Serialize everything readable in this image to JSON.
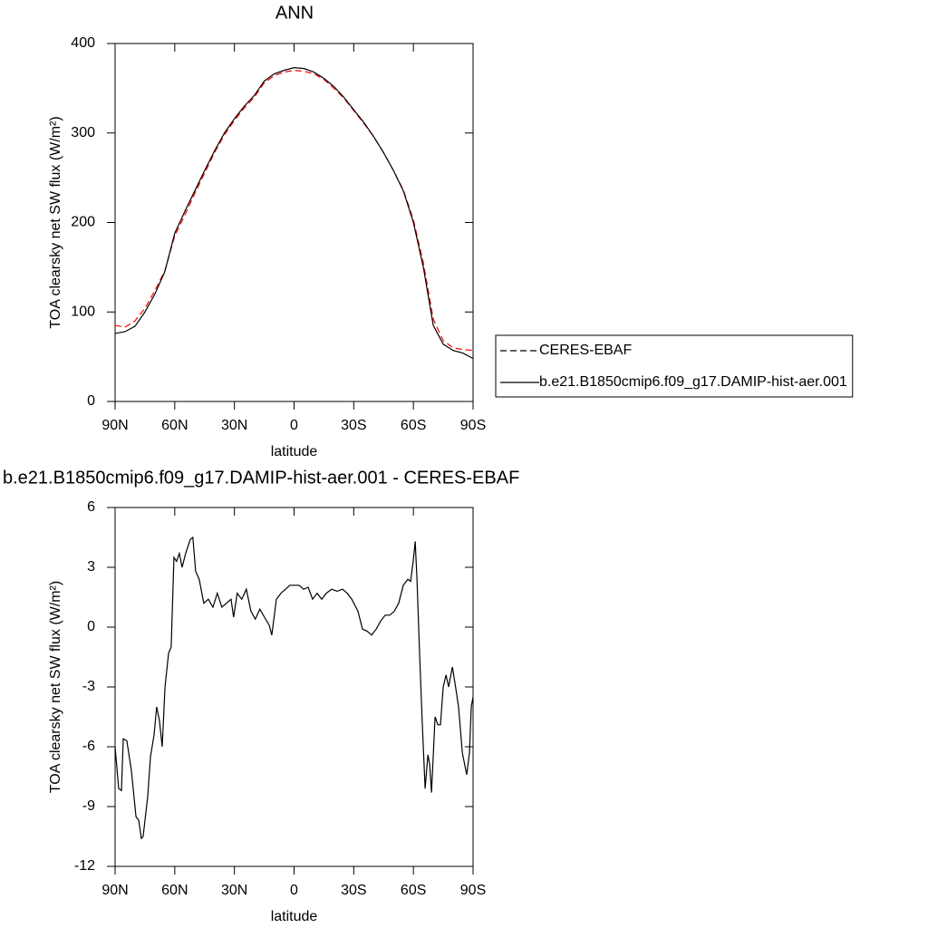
{
  "chart_data": [
    {
      "type": "line",
      "title": "ANN",
      "xlabel": "latitude",
      "ylabel": "TOA clearsky net SW flux (W/m²)",
      "x": [
        90,
        85,
        80,
        75,
        70,
        65,
        60,
        55,
        50,
        45,
        40,
        35,
        30,
        25,
        20,
        15,
        10,
        5,
        0,
        -5,
        -10,
        -15,
        -20,
        -25,
        -30,
        -35,
        -40,
        -45,
        -50,
        -55,
        -60,
        -65,
        -70,
        -75,
        -80,
        -85,
        -90
      ],
      "series": [
        {
          "name": "CERES-EBAF",
          "color": "#ff0000",
          "dashed": true,
          "values": [
            85,
            83,
            90,
            104,
            124,
            146,
            185,
            208,
            232,
            255,
            278,
            298,
            314,
            328,
            340,
            356,
            364,
            368,
            370,
            369,
            366,
            360,
            350,
            339,
            325,
            311,
            296,
            278,
            258,
            236,
            203,
            155,
            92,
            68,
            60,
            58,
            57
          ]
        },
        {
          "name": "b.e21.B1850cmip6.f09_g17.DAMIP-hist-aer.001",
          "color": "#000000",
          "dashed": false,
          "values": [
            76,
            78,
            84,
            100,
            120,
            145,
            188,
            212,
            235,
            258,
            280,
            300,
            316,
            330,
            342,
            358,
            366,
            370,
            373,
            372,
            368,
            361,
            352,
            340,
            326,
            312,
            296,
            278,
            258,
            235,
            200,
            150,
            85,
            64,
            57,
            54,
            48
          ]
        }
      ],
      "xlim": [
        90,
        -90
      ],
      "xticks": [
        {
          "value": 90,
          "label": "90N"
        },
        {
          "value": 60,
          "label": "60N"
        },
        {
          "value": 30,
          "label": "30N"
        },
        0,
        {
          "value": -30,
          "label": "30S"
        },
        {
          "value": -60,
          "label": "60S"
        },
        {
          "value": -90,
          "label": "90S"
        }
      ],
      "ylim": [
        0,
        400
      ],
      "yticks": [
        0,
        100,
        200,
        300,
        400
      ],
      "legend": "right"
    },
    {
      "type": "line",
      "title": "b.e21.B1850cmip6.f09_g17.DAMIP-hist-aer.001 - CERES-EBAF",
      "xlabel": "latitude",
      "ylabel": "TOA clearsky net SW flux (W/m²)",
      "x": [
        90,
        88.2,
        86.8,
        85.9,
        84.1,
        81.8,
        79.5,
        78.1,
        76.8,
        75.9,
        73.6,
        72.2,
        70.4,
        69.1,
        67.7,
        66.3,
        64.9,
        63.1,
        61.8,
        60.4,
        59.1,
        57.7,
        56.3,
        54.5,
        52.2,
        50.9,
        49.5,
        47.7,
        45.4,
        43.1,
        40.8,
        38.6,
        36.3,
        34.0,
        31.7,
        30.4,
        28.6,
        26.3,
        24.0,
        21.7,
        19.5,
        17.2,
        14.9,
        12.5,
        11.2,
        8.9,
        6.6,
        4.3,
        2.1,
        0,
        -2.5,
        -4.8,
        -7.1,
        -9.3,
        -11.6,
        -13.9,
        -16.2,
        -18.9,
        -21.6,
        -24.4,
        -26.7,
        -29.0,
        -32.1,
        -34.4,
        -36.7,
        -39.0,
        -41.3,
        -43.5,
        -45.8,
        -48.1,
        -50.4,
        -52.6,
        -54.9,
        -57.2,
        -58.6,
        -59.9,
        -60.9,
        -61.8,
        -63.1,
        -64.5,
        -65.9,
        -67.3,
        -68.2,
        -69.1,
        -70.9,
        -72.3,
        -73.6,
        -75.0,
        -76.4,
        -77.7,
        -79.6,
        -80.9,
        -82.7,
        -84.6,
        -86.8,
        -88.2,
        -89.1,
        -90
      ],
      "values": [
        -6.0,
        -8.1,
        -8.2,
        -5.6,
        -5.7,
        -7.2,
        -9.5,
        -9.7,
        -10.6,
        -10.5,
        -8.5,
        -6.5,
        -5.4,
        -4.0,
        -4.7,
        -6.0,
        -3.0,
        -1.3,
        -1.0,
        3.5,
        3.3,
        3.7,
        3.0,
        3.7,
        4.4,
        4.5,
        2.8,
        2.4,
        1.2,
        1.4,
        1.0,
        1.7,
        1.0,
        1.2,
        1.4,
        0.5,
        1.7,
        1.4,
        1.9,
        0.8,
        0.4,
        0.9,
        0.5,
        0.1,
        -0.4,
        1.4,
        1.7,
        1.9,
        2.1,
        2.1,
        2.1,
        1.9,
        2.0,
        1.4,
        1.7,
        1.4,
        1.7,
        1.9,
        1.8,
        1.9,
        1.7,
        1.4,
        0.8,
        -0.1,
        -0.2,
        -0.4,
        -0.1,
        0.3,
        0.6,
        0.6,
        0.8,
        1.2,
        2.1,
        2.4,
        2.3,
        3.3,
        4.3,
        2.4,
        -1.3,
        -4.9,
        -8.1,
        -6.4,
        -6.9,
        -8.3,
        -4.5,
        -4.9,
        -4.9,
        -3.0,
        -2.4,
        -3.0,
        -2.0,
        -2.8,
        -4.0,
        -6.3,
        -7.4,
        -6.3,
        -4.0,
        -3.5
      ],
      "color": "#000000",
      "xlim": [
        90,
        -90
      ],
      "xticks": [
        {
          "value": 90,
          "label": "90N"
        },
        {
          "value": 60,
          "label": "60N"
        },
        {
          "value": 30,
          "label": "30N"
        },
        0,
        {
          "value": -30,
          "label": "30S"
        },
        {
          "value": -60,
          "label": "60S"
        },
        {
          "value": -90,
          "label": "90S"
        }
      ],
      "ylim": [
        -12,
        6
      ],
      "yticks": [
        -12,
        -9,
        -6,
        -3,
        0,
        3,
        6
      ]
    }
  ]
}
